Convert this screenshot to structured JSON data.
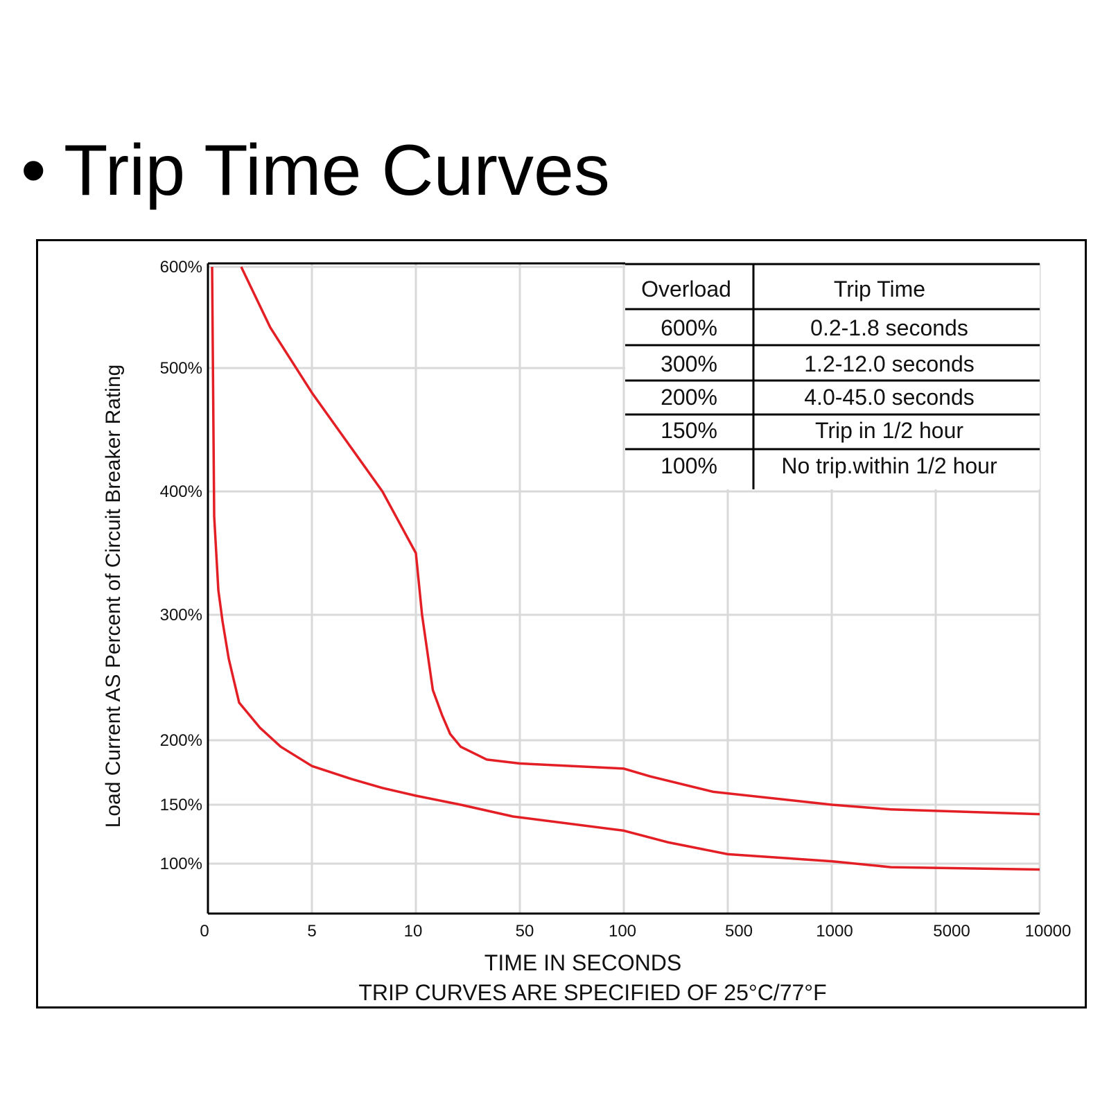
{
  "slide": {
    "bullet": "•",
    "title": "Trip Time Curves"
  },
  "colors": {
    "curve": "#e31e24",
    "grid": "#d9d9d9",
    "axis": "#000000"
  },
  "chart_data": {
    "type": "line",
    "title": "",
    "xlabel": "TIME IN SECONDS",
    "caption": "TRIP CURVES ARE SPECIFIED OF 25°C/77°F",
    "ylabel": "Load Current AS Percent of Circuit Breaker Rating",
    "x_scale": "categorical-log",
    "x_ticks": [
      "0",
      "5",
      "10",
      "50",
      "100",
      "500",
      "1000",
      "5000",
      "10000"
    ],
    "y_scale": "non-uniform",
    "y_ticks": [
      "100%",
      "150%",
      "200%",
      "300%",
      "400%",
      "500%",
      "600%"
    ],
    "y_tick_values": [
      100,
      150,
      200,
      300,
      400,
      500,
      600
    ],
    "grid": true,
    "series": [
      {
        "x": [
          0.2,
          0.3,
          0.5,
          0.7,
          1,
          1.5,
          2.5,
          3.5,
          5,
          6.5,
          8,
          10,
          20,
          45,
          100,
          200,
          500,
          1000,
          2500,
          10000
        ],
        "y": [
          600,
          380,
          320,
          295,
          265,
          230,
          210,
          195,
          180,
          170,
          163,
          157,
          150,
          140,
          128,
          118,
          108,
          102,
          97,
          95
        ]
      },
      {
        "x": [
          1.6,
          3,
          5,
          8,
          10,
          11,
          13,
          15,
          17,
          20,
          30,
          50,
          100,
          150,
          400,
          1000,
          2500,
          10000
        ],
        "y": [
          600,
          540,
          480,
          400,
          350,
          300,
          240,
          220,
          205,
          195,
          185,
          182,
          178,
          172,
          160,
          150,
          146,
          142
        ]
      }
    ],
    "table": {
      "headers": [
        "Overload",
        "Trip Time"
      ],
      "rows": [
        [
          "600%",
          "0.2-1.8 seconds"
        ],
        [
          "300%",
          "1.2-12.0 seconds"
        ],
        [
          "200%",
          "4.0-45.0 seconds"
        ],
        [
          "150%",
          "Trip in 1/2 hour"
        ],
        [
          "100%",
          "No trip.within 1/2 hour"
        ]
      ]
    }
  }
}
